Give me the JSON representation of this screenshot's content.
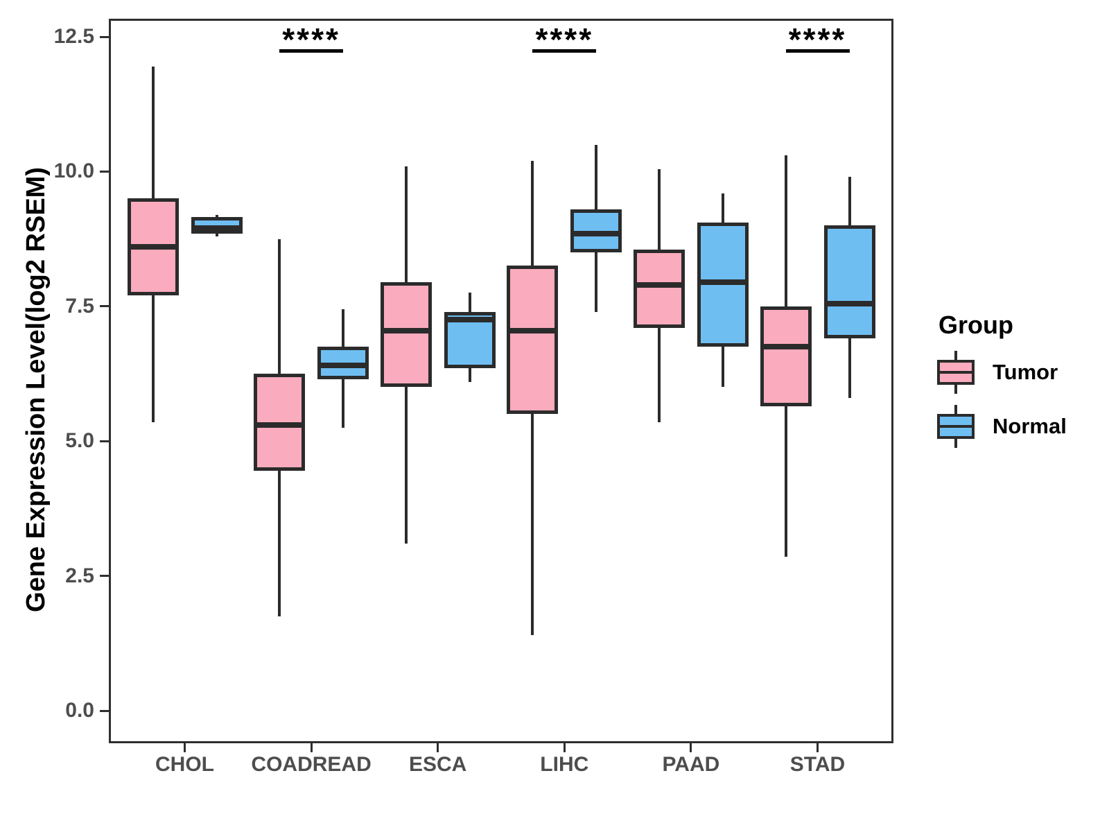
{
  "chart_data": {
    "type": "grouped_boxplot",
    "title": "",
    "xlabel": "",
    "ylabel": "Gene Expression Level(log2 RSEM)",
    "categories": [
      "CHOL",
      "COADREAD",
      "ESCA",
      "LIHC",
      "PAAD",
      "STAD"
    ],
    "y_ticks": [
      "0.0",
      "2.5",
      "5.0",
      "7.5",
      "10.0",
      "12.5"
    ],
    "y_tick_values": [
      0.0,
      2.5,
      5.0,
      7.5,
      10.0,
      12.5
    ],
    "ylim": [
      -0.6,
      12.85
    ],
    "grid": "off",
    "series": [
      {
        "name": "Tumor",
        "color": "#FAABBD",
        "data": [
          {
            "category": "CHOL",
            "whisker_low": 5.35,
            "q1": 7.7,
            "median": 8.6,
            "q3": 9.5,
            "whisker_high": 11.95
          },
          {
            "category": "COADREAD",
            "whisker_low": 1.75,
            "q1": 4.45,
            "median": 5.3,
            "q3": 6.25,
            "whisker_high": 8.75
          },
          {
            "category": "ESCA",
            "whisker_low": 3.1,
            "q1": 6.0,
            "median": 7.05,
            "q3": 7.95,
            "whisker_high": 10.1
          },
          {
            "category": "LIHC",
            "whisker_low": 1.4,
            "q1": 5.5,
            "median": 7.05,
            "q3": 8.25,
            "whisker_high": 10.2
          },
          {
            "category": "PAAD",
            "whisker_low": 5.35,
            "q1": 7.1,
            "median": 7.9,
            "q3": 8.55,
            "whisker_high": 10.05
          },
          {
            "category": "STAD",
            "whisker_low": 2.85,
            "q1": 5.65,
            "median": 6.75,
            "q3": 7.5,
            "whisker_high": 10.3
          }
        ]
      },
      {
        "name": "Normal",
        "color": "#6FBEF2",
        "data": [
          {
            "category": "CHOL",
            "whisker_low": 8.8,
            "q1": 8.85,
            "median": 8.95,
            "q3": 9.15,
            "whisker_high": 9.2
          },
          {
            "category": "COADREAD",
            "whisker_low": 5.25,
            "q1": 6.15,
            "median": 6.4,
            "q3": 6.75,
            "whisker_high": 7.45
          },
          {
            "category": "ESCA",
            "whisker_low": 6.1,
            "q1": 6.35,
            "median": 7.25,
            "q3": 7.4,
            "whisker_high": 7.75
          },
          {
            "category": "LIHC",
            "whisker_low": 7.4,
            "q1": 8.5,
            "median": 8.85,
            "q3": 9.3,
            "whisker_high": 10.5
          },
          {
            "category": "PAAD",
            "whisker_low": 6.0,
            "q1": 6.75,
            "median": 7.95,
            "q3": 9.05,
            "whisker_high": 9.6
          },
          {
            "category": "STAD",
            "whisker_low": 5.8,
            "q1": 6.9,
            "median": 7.55,
            "q3": 9.0,
            "whisker_high": 9.9
          }
        ]
      }
    ],
    "significance": [
      {
        "category": "COADREAD",
        "label": "****"
      },
      {
        "category": "LIHC",
        "label": "****"
      },
      {
        "category": "STAD",
        "label": "****"
      }
    ],
    "legend": {
      "title": "Group",
      "position": "right",
      "entries": [
        "Tumor",
        "Normal"
      ]
    },
    "colors": {
      "box_border": "#2b2b2b",
      "tick_text": "#4d4d4d",
      "axis_title_text": "#000000",
      "tumor_fill": "#FAABBD",
      "normal_fill": "#6FBEF2"
    }
  }
}
